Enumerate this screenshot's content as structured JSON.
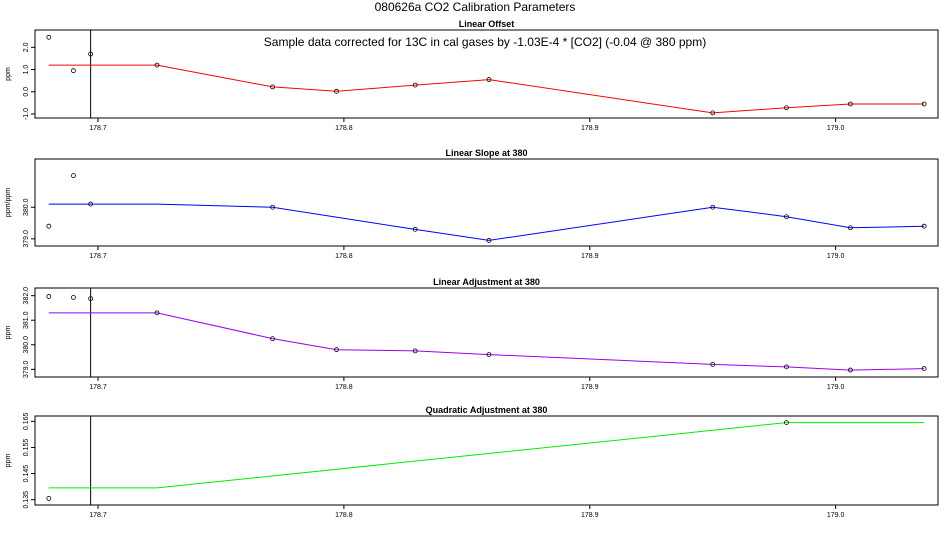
{
  "figure": {
    "title": "080626a   CO2 Calibration Parameters"
  },
  "chart_data": [
    {
      "type": "line",
      "title": "Linear Offset",
      "ylabel": "ppm",
      "xlim": [
        178.676,
        179.04
      ],
      "ylim": [
        -1.0,
        2.6
      ],
      "xticks": [
        "178.7",
        "178.8",
        "178.9",
        "179.0"
      ],
      "yticks": [
        "-1.0",
        "0.0",
        "1.0",
        "2.0"
      ],
      "vline_x": 178.697,
      "annotation": "Sample data corrected for 13C in cal gases by -1.03E-4 * [CO2] (-0.04 @ 380 ppm)",
      "color": "#ff0000",
      "line": {
        "x": [
          178.68,
          178.724,
          178.771,
          178.797,
          178.829,
          178.859,
          178.95,
          178.98,
          179.006,
          179.036
        ],
        "y": [
          1.2,
          1.2,
          0.22,
          0.02,
          0.3,
          0.55,
          -0.95,
          -0.72,
          -0.55,
          -0.55
        ]
      },
      "points": {
        "x": [
          178.68,
          178.69,
          178.697,
          178.724,
          178.771,
          178.797,
          178.829,
          178.859,
          178.95,
          178.98,
          179.006,
          179.036
        ],
        "y": [
          2.45,
          0.95,
          1.7,
          1.2,
          0.22,
          0.02,
          0.3,
          0.55,
          -0.95,
          -0.72,
          -0.55,
          -0.55
        ]
      }
    },
    {
      "type": "line",
      "title": "Linear Slope at 380",
      "ylabel": "ppm/ppm",
      "xlim": [
        178.676,
        179.04
      ],
      "ylim": [
        378.9,
        381.4
      ],
      "xticks": [
        "178.7",
        "178.8",
        "178.9",
        "179.0"
      ],
      "yticks": [
        "379.0",
        "380.0"
      ],
      "color": "#0000ff",
      "line": {
        "x": [
          178.68,
          178.724,
          178.771,
          178.829,
          178.859,
          178.95,
          178.98,
          179.006,
          179.036
        ],
        "y": [
          380.1,
          380.1,
          380.0,
          379.3,
          378.95,
          380.0,
          379.7,
          379.35,
          379.4
        ]
      },
      "points": {
        "x": [
          178.68,
          178.69,
          178.697,
          178.771,
          178.829,
          178.859,
          178.95,
          178.98,
          179.006,
          179.036
        ],
        "y": [
          379.4,
          381.0,
          380.1,
          380.0,
          379.3,
          378.95,
          380.0,
          379.7,
          379.35,
          379.4
        ]
      }
    },
    {
      "type": "line",
      "title": "Linear Adjustment at 380",
      "ylabel": "ppm",
      "xlim": [
        178.676,
        179.04
      ],
      "ylim": [
        378.85,
        382.15
      ],
      "xticks": [
        "178.7",
        "178.8",
        "178.9",
        "179.0"
      ],
      "yticks": [
        "379.0",
        "380.0",
        "381.0",
        "382.0"
      ],
      "vline_x": 178.697,
      "color": "#9900ee",
      "line": {
        "x": [
          178.68,
          178.724,
          178.771,
          178.797,
          178.829,
          178.859,
          178.95,
          178.98,
          179.006,
          179.036
        ],
        "y": [
          381.3,
          381.3,
          380.25,
          379.8,
          379.75,
          379.6,
          379.2,
          379.1,
          378.97,
          379.03
        ]
      },
      "points": {
        "x": [
          178.68,
          178.69,
          178.697,
          178.724,
          178.771,
          178.797,
          178.829,
          178.859,
          178.95,
          178.98,
          179.006,
          179.036
        ],
        "y": [
          381.97,
          381.93,
          381.88,
          381.3,
          380.25,
          379.8,
          379.75,
          379.6,
          379.2,
          379.1,
          378.97,
          379.03
        ]
      }
    },
    {
      "type": "line",
      "title": "Quadratic Adjustment at 380",
      "ylabel": "ppm",
      "xlim": [
        178.676,
        179.04
      ],
      "ylim": [
        0.1345,
        0.1655
      ],
      "xticks": [
        "178.7",
        "178.8",
        "178.9",
        "179.0"
      ],
      "yticks": [
        "0.135",
        "0.145",
        "0.155",
        "0.165"
      ],
      "vline_x": 178.697,
      "color": "#00ee00",
      "line": {
        "x": [
          178.68,
          178.724,
          178.98,
          179.036
        ],
        "y": [
          0.1395,
          0.1395,
          0.1645,
          0.1645
        ]
      },
      "points": {
        "x": [
          178.68,
          178.98
        ],
        "y": [
          0.1355,
          0.1645
        ]
      }
    }
  ]
}
